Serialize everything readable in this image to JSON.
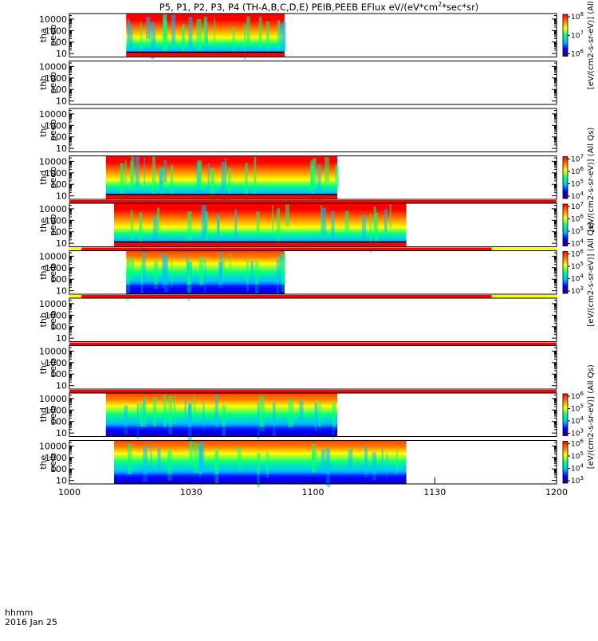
{
  "chart_data": {
    "type": "heatmap",
    "title": "P5, P1, P2, P3, P4 (TH-A,B,C,D,E) PEIB,PEEB EFlux eV/(eV*cm2*sec*sr)",
    "title_parts": {
      "main": "P5, P1, P2, P3, P4 (TH-A,B,C,D,E) PEIB,PEEB EFlux eV/(eV*cm",
      "sup": "2",
      "tail": "*sec*sr)"
    },
    "xaxis": {
      "label": "hhmm",
      "date": "2016 Jan 25",
      "ticks": [
        "1000",
        "1030",
        "1100",
        "1130",
        "1200"
      ],
      "range": [
        "10:00",
        "12:00"
      ]
    },
    "colorbar_label": "[eV/(cm2-s-sr-eV)] (All Qs)",
    "panels": [
      {
        "label": [
          "tha",
          "peeb"
        ],
        "yticks": [
          "10",
          "100",
          "1000",
          "10000"
        ],
        "scale": "log",
        "data_span": [
          "10:14",
          "10:53"
        ],
        "cbar_ticks": [
          "10^6",
          "10^7",
          "10^8"
        ],
        "bar": false
      },
      {
        "label": [
          "thb",
          "peeb"
        ],
        "yticks": [
          "10",
          "100",
          "1000",
          "10000"
        ],
        "scale": "log",
        "data_span": null,
        "cbar_ticks": [],
        "bar": false
      },
      {
        "label": [
          "thc",
          "peeb"
        ],
        "yticks": [
          "10",
          "100",
          "1000",
          "10000"
        ],
        "scale": "log",
        "data_span": null,
        "cbar_ticks": [],
        "bar": false
      },
      {
        "label": [
          "thd",
          "peeb"
        ],
        "yticks": [
          "10",
          "100",
          "1000",
          "10000"
        ],
        "scale": "log",
        "data_span": [
          "10:09",
          "11:06"
        ],
        "cbar_ticks": [
          "10^4",
          "10^5",
          "10^6",
          "10^7"
        ],
        "bar": false
      },
      {
        "label": [
          "the",
          "peeb"
        ],
        "yticks": [
          "10",
          "100",
          "1000",
          "10000"
        ],
        "scale": "log",
        "data_span": [
          "10:11",
          "11:23"
        ],
        "cbar_ticks": [
          "10^4",
          "10^5",
          "10^6",
          "10^7"
        ],
        "bar": "red"
      },
      {
        "label": [
          "tha",
          "peib"
        ],
        "yticks": [
          "10",
          "100",
          "1000",
          "10000"
        ],
        "scale": "log",
        "data_span": [
          "10:14",
          "10:53"
        ],
        "cbar_ticks": [
          "10^3",
          "10^4",
          "10^5",
          "10^6"
        ],
        "bar": "yellow-red-yellow"
      },
      {
        "label": [
          "thb",
          "peib"
        ],
        "yticks": [
          "10",
          "100",
          "1000",
          "10000"
        ],
        "scale": "log",
        "data_span": null,
        "cbar_ticks": [],
        "bar": "yellow-red-yellow"
      },
      {
        "label": [
          "thc",
          "peib"
        ],
        "yticks": [
          "10",
          "100",
          "1000",
          "10000"
        ],
        "scale": "log",
        "data_span": null,
        "cbar_ticks": [],
        "bar": "red"
      },
      {
        "label": [
          "thd",
          "peib"
        ],
        "yticks": [
          "10",
          "100",
          "1000",
          "10000"
        ],
        "scale": "log",
        "data_span": [
          "10:09",
          "11:06"
        ],
        "cbar_ticks": [
          "10^3",
          "10^4",
          "10^5",
          "10^6"
        ],
        "bar": "red"
      },
      {
        "label": [
          "the",
          "peib"
        ],
        "yticks": [
          "10",
          "100",
          "1000",
          "10000"
        ],
        "scale": "log",
        "data_span": [
          "10:11",
          "11:23"
        ],
        "cbar_ticks": [
          "10^3",
          "10^4",
          "10^5",
          "10^6"
        ],
        "bar": false
      }
    ],
    "colorscale": [
      "#30006f",
      "#0000ff",
      "#00bfff",
      "#00ff80",
      "#ffff00",
      "#ff8000",
      "#ff0000"
    ],
    "grid": false,
    "legend": "none"
  }
}
